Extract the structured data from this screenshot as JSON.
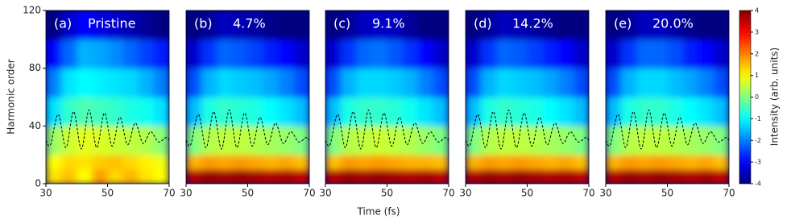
{
  "chart_data": {
    "type": "heatmap",
    "xlabel": "Time (fs)",
    "ylabel": "Harmonic order",
    "xlim": [
      30,
      70
    ],
    "xticks": [
      30,
      50,
      70
    ],
    "ylim": [
      0,
      120
    ],
    "yticks": [
      0,
      40,
      80,
      120
    ],
    "x_edges": [
      30,
      35,
      40,
      45,
      50,
      55,
      60,
      65,
      70
    ],
    "y_edges": [
      0,
      10,
      20,
      40,
      60,
      80,
      100,
      120
    ],
    "colormap": "jet",
    "clim": [
      -4,
      4
    ],
    "cticks": [
      -4,
      -3,
      -2,
      -1,
      0,
      1,
      2,
      3,
      4
    ],
    "clabel": "Intensity (arb. units)",
    "curve": {
      "color": "#000000",
      "x": [
        30,
        31.5,
        34,
        36.5,
        39,
        41.5,
        44,
        46.5,
        49,
        51.5,
        54,
        56.5,
        59,
        61.5,
        64,
        66.5,
        69,
        70
      ],
      "y": [
        30,
        27,
        48,
        25,
        50,
        24,
        51,
        25,
        49,
        26,
        46,
        27,
        42,
        28,
        36,
        29,
        32,
        30
      ]
    },
    "panels": [
      {
        "label": "(a)",
        "title": "Pristine",
        "z": [
          [
            1.2,
            1.5,
            1.0,
            1.8,
            1.3,
            1.6,
            1.2,
            1.0
          ],
          [
            1.0,
            1.3,
            1.2,
            1.4,
            1.5,
            1.3,
            1.1,
            0.9
          ],
          [
            0.2,
            0.6,
            0.8,
            0.7,
            0.6,
            0.5,
            0.4,
            0.1
          ],
          [
            -1.2,
            -0.6,
            -0.4,
            -0.5,
            -0.6,
            -0.8,
            -0.9,
            -1.2
          ],
          [
            -2.0,
            -1.2,
            -1.0,
            -1.1,
            -1.2,
            -1.3,
            -1.6,
            -2.0
          ],
          [
            -3.0,
            -2.2,
            -1.6,
            -1.7,
            -1.9,
            -2.2,
            -2.5,
            -2.8
          ],
          [
            -4,
            -3.4,
            -3.0,
            -3.2,
            -3.4,
            -3.6,
            -3.8,
            -4
          ]
        ]
      },
      {
        "label": "(b)",
        "title": "4.7%",
        "z": [
          [
            3.6,
            3.8,
            3.7,
            3.8,
            3.7,
            3.6,
            3.7,
            3.5
          ],
          [
            1.6,
            1.8,
            1.7,
            1.8,
            1.7,
            1.6,
            1.7,
            1.5
          ],
          [
            0.0,
            0.4,
            0.5,
            0.5,
            0.4,
            0.3,
            0.2,
            0.0
          ],
          [
            -1.5,
            -0.8,
            -0.6,
            -0.7,
            -0.8,
            -1.0,
            -1.2,
            -1.5
          ],
          [
            -2.4,
            -1.6,
            -1.3,
            -1.4,
            -1.5,
            -1.7,
            -2.0,
            -2.4
          ],
          [
            -3.4,
            -2.6,
            -2.2,
            -2.3,
            -2.5,
            -2.8,
            -3.0,
            -3.4
          ],
          [
            -4,
            -3.8,
            -3.5,
            -3.6,
            -3.7,
            -3.9,
            -4,
            -4
          ]
        ]
      },
      {
        "label": "(c)",
        "title": "9.1%",
        "z": [
          [
            3.6,
            3.8,
            3.7,
            3.8,
            3.7,
            3.6,
            3.7,
            3.5
          ],
          [
            1.5,
            1.8,
            1.7,
            1.8,
            1.7,
            1.6,
            1.6,
            1.5
          ],
          [
            0.0,
            0.4,
            0.5,
            0.6,
            0.5,
            0.4,
            0.2,
            0.0
          ],
          [
            -1.5,
            -0.8,
            -0.6,
            -0.6,
            -0.7,
            -0.9,
            -1.2,
            -1.5
          ],
          [
            -2.4,
            -1.6,
            -1.3,
            -1.3,
            -1.4,
            -1.6,
            -2.0,
            -2.4
          ],
          [
            -3.4,
            -2.6,
            -2.2,
            -2.1,
            -2.3,
            -2.6,
            -3.0,
            -3.4
          ],
          [
            -4,
            -3.8,
            -3.5,
            -3.4,
            -3.5,
            -3.8,
            -4,
            -4
          ]
        ]
      },
      {
        "label": "(d)",
        "title": "14.2%",
        "z": [
          [
            3.6,
            3.8,
            3.7,
            3.8,
            3.7,
            3.6,
            3.7,
            3.5
          ],
          [
            1.6,
            1.8,
            1.7,
            1.8,
            1.7,
            1.6,
            1.7,
            1.5
          ],
          [
            0.0,
            0.4,
            0.5,
            0.5,
            0.4,
            0.3,
            0.2,
            0.0
          ],
          [
            -1.5,
            -0.8,
            -0.6,
            -0.7,
            -0.8,
            -1.0,
            -1.2,
            -1.5
          ],
          [
            -2.4,
            -1.6,
            -1.3,
            -1.4,
            -1.5,
            -1.7,
            -2.0,
            -2.4
          ],
          [
            -3.4,
            -2.6,
            -2.2,
            -2.3,
            -2.5,
            -2.8,
            -3.0,
            -3.4
          ],
          [
            -4,
            -3.8,
            -3.5,
            -3.6,
            -3.7,
            -3.9,
            -4,
            -4
          ]
        ]
      },
      {
        "label": "(e)",
        "title": "20.0%",
        "z": [
          [
            3.6,
            3.8,
            3.7,
            3.8,
            3.7,
            3.6,
            3.7,
            3.5
          ],
          [
            1.6,
            1.8,
            1.7,
            1.8,
            1.7,
            1.6,
            1.7,
            1.5
          ],
          [
            0.0,
            0.4,
            0.5,
            0.5,
            0.4,
            0.3,
            0.2,
            0.0
          ],
          [
            -1.5,
            -0.8,
            -0.6,
            -0.6,
            -0.8,
            -1.0,
            -1.2,
            -1.5
          ],
          [
            -2.4,
            -1.6,
            -1.3,
            -1.3,
            -1.5,
            -1.7,
            -2.0,
            -2.4
          ],
          [
            -3.4,
            -2.6,
            -2.2,
            -2.2,
            -2.4,
            -2.8,
            -3.0,
            -3.4
          ],
          [
            -4,
            -3.8,
            -3.5,
            -3.5,
            -3.7,
            -3.9,
            -4,
            -4
          ]
        ]
      }
    ]
  }
}
